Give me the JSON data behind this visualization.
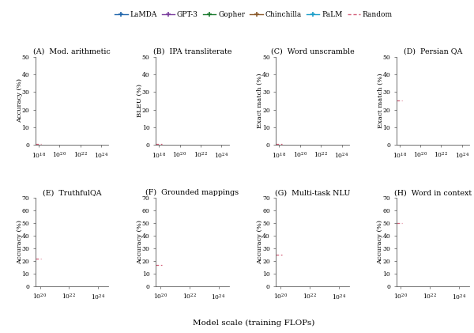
{
  "legend_entries": [
    {
      "label": "LaMDA",
      "color": "#2166ac",
      "marker": "+",
      "linestyle": "-"
    },
    {
      "label": "GPT-3",
      "color": "#7b3f9e",
      "marker": "+",
      "linestyle": "-"
    },
    {
      "label": "Gopher",
      "color": "#1a7a2e",
      "marker": "+",
      "linestyle": "-"
    },
    {
      "label": "Chinchilla",
      "color": "#8b5a2b",
      "marker": "+",
      "linestyle": "-"
    },
    {
      "label": "PaLM",
      "color": "#1b9ec9",
      "marker": "+",
      "linestyle": "-"
    },
    {
      "label": "Random",
      "color": "#d4607a",
      "marker": "",
      "linestyle": "--"
    }
  ],
  "top_row": [
    {
      "label": "(A)  Mod. arithmetic",
      "ylabel": "Accuracy (%)",
      "ylim": [
        0,
        50
      ],
      "yticks": [
        0,
        10,
        20,
        30,
        40,
        50
      ],
      "xlim_low": 5e+17,
      "xlim_high": 5e+24,
      "xticks": [
        1e+18,
        1e+20,
        1e+22,
        1e+24
      ],
      "random_y": 0.5,
      "has_random_dot": true
    },
    {
      "label": "(B)  IPA transliterate",
      "ylabel": "BLEU (%)",
      "ylim": [
        0,
        50
      ],
      "yticks": [
        0,
        10,
        20,
        30,
        40,
        50
      ],
      "xlim_low": 5e+17,
      "xlim_high": 5e+24,
      "xticks": [
        1e+18,
        1e+20,
        1e+22,
        1e+24
      ],
      "random_y": 0.5,
      "has_random_dot": true
    },
    {
      "label": "(C)  Word unscramble",
      "ylabel": "Exact match (%)",
      "ylim": [
        0,
        50
      ],
      "yticks": [
        0,
        10,
        20,
        30,
        40,
        50
      ],
      "xlim_low": 5e+17,
      "xlim_high": 5e+24,
      "xticks": [
        1e+18,
        1e+20,
        1e+22,
        1e+24
      ],
      "random_y": 0.5,
      "has_random_dot": true
    },
    {
      "label": "(D)  Persian QA",
      "ylabel": "Exact match (%)",
      "ylim": [
        0,
        50
      ],
      "yticks": [
        0,
        10,
        20,
        30,
        40,
        50
      ],
      "xlim_low": 5e+17,
      "xlim_high": 5e+24,
      "xticks": [
        1e+18,
        1e+20,
        1e+22,
        1e+24
      ],
      "random_y": 25,
      "has_random_dot": true
    }
  ],
  "bottom_row": [
    {
      "label": "(E)  TruthfulQA",
      "ylabel": "Accuracy (%)",
      "ylim": [
        0,
        70
      ],
      "yticks": [
        0,
        10,
        20,
        30,
        40,
        50,
        60,
        70
      ],
      "xlim_low": 5e+19,
      "xlim_high": 5e+24,
      "xticks": [
        1e+20,
        1e+22,
        1e+24
      ],
      "random_y": 22,
      "has_random_dot": true
    },
    {
      "label": "(F)  Grounded mappings",
      "ylabel": "Accuracy (%)",
      "ylim": [
        0,
        70
      ],
      "yticks": [
        0,
        10,
        20,
        30,
        40,
        50,
        60,
        70
      ],
      "xlim_low": 5e+19,
      "xlim_high": 5e+24,
      "xticks": [
        1e+20,
        1e+22,
        1e+24
      ],
      "random_y": 17,
      "has_random_dot": true
    },
    {
      "label": "(G)  Multi-task NLU",
      "ylabel": "Accuracy (%)",
      "ylim": [
        0,
        70
      ],
      "yticks": [
        0,
        10,
        20,
        30,
        40,
        50,
        60,
        70
      ],
      "xlim_low": 5e+19,
      "xlim_high": 5e+24,
      "xticks": [
        1e+20,
        1e+22,
        1e+24
      ],
      "random_y": 25,
      "has_random_dot": true
    },
    {
      "label": "(H)  Word in context",
      "ylabel": "Accuracy (%)",
      "ylim": [
        0,
        70
      ],
      "yticks": [
        0,
        10,
        20,
        30,
        40,
        50,
        60,
        70
      ],
      "xlim_low": 5e+19,
      "xlim_high": 5e+24,
      "xticks": [
        1e+20,
        1e+22,
        1e+24
      ],
      "random_y": 50,
      "has_random_dot": true
    }
  ],
  "xlabel": "Model scale (training FLOPs)",
  "background_color": "#ffffff",
  "font_family": "DejaVu Serif"
}
